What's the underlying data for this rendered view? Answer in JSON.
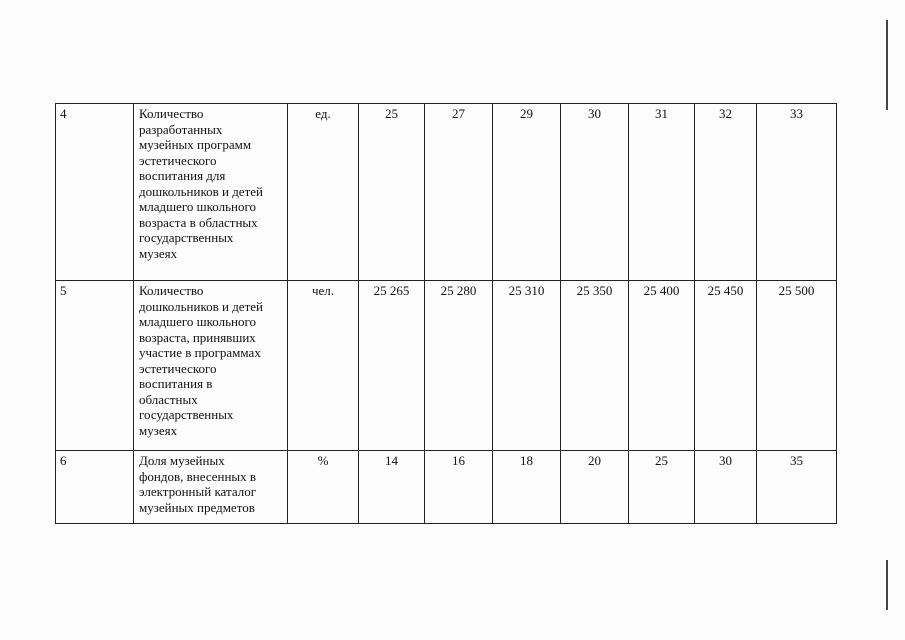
{
  "table": {
    "rows": [
      {
        "number": "4",
        "description": "Количество\nразработанных\nмузейных программ\nэстетического\nвоспитания для\nдошкольников и детей\nмладшего школьного\nвозраста в областных\nгосударственных\nмузеях",
        "unit": "ед.",
        "values": [
          "25",
          "27",
          "29",
          "30",
          "31",
          "32",
          "33"
        ]
      },
      {
        "number": "5",
        "description": "Количество\nдошкольников и детей\nмладшего школьного\nвозраста, принявших\nучастие в программах\nэстетического\nвоспитания в\nобластных\nгосударственных\nмузеях",
        "unit": "чел.",
        "values": [
          "25 265",
          "25 280",
          "25 310",
          "25 350",
          "25 400",
          "25 450",
          "25 500"
        ]
      },
      {
        "number": "6",
        "description": "Доля музейных\nфондов, внесенных в\nэлектронный каталог\nмузейных предметов",
        "unit": "%",
        "values": [
          "14",
          "16",
          "18",
          "20",
          "25",
          "30",
          "35"
        ]
      }
    ]
  }
}
